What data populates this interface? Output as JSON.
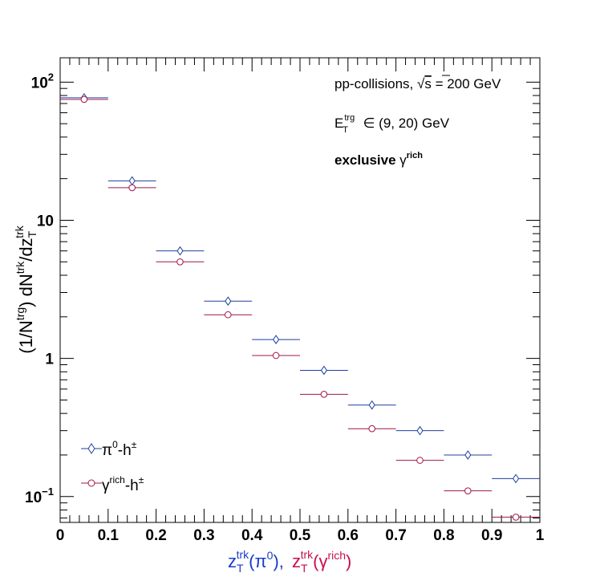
{
  "chart_data": {
    "type": "scatter",
    "x_range": [
      0,
      1
    ],
    "y_range": [
      0.065,
      150
    ],
    "y_scale": "log",
    "grid": false,
    "legend_position": "bottom-left",
    "x_ticks": [
      "0",
      "0.1",
      "0.2",
      "0.3",
      "0.4",
      "0.5",
      "0.6",
      "0.7",
      "0.8",
      "0.9",
      "1"
    ],
    "y_ticks": [
      {
        "value": 100,
        "base": "10",
        "exp": "2"
      },
      {
        "value": 10,
        "label": "10"
      },
      {
        "value": 1,
        "label": "1"
      },
      {
        "value": 0.1,
        "base": "10",
        "exp": "−1"
      }
    ],
    "ylabel": {
      "prefix": "(1/N",
      "sup1": "trg",
      "mid": ") dN",
      "sup2": "trk",
      "tail": "/dz",
      "sub3": "T",
      "sup3": "trk"
    },
    "xlabel": {
      "part1": {
        "base": "z",
        "sub": "T",
        "sup": "trk",
        "open": "(π",
        "sup2": "0",
        "close": "),"
      },
      "part2": {
        "base": "z",
        "sub": "T",
        "sup": "trk",
        "open": "(γ",
        "sup2": "rich",
        "close": ")"
      }
    },
    "annotations": {
      "line1_a": "pp-collisions, ",
      "line1_sqrt": "√",
      "line1_s": "s",
      "line1_b": " = 200 GeV",
      "line2_base": "E",
      "line2_sup": "trg",
      "line2_sub": "T",
      "line2_rest": " ∈ (9, 20) GeV",
      "line3_bold": "exclusive ",
      "line3_gamma": "γ",
      "line3_sup": "rich"
    },
    "series": [
      {
        "name": {
          "base": "π",
          "sup": "0",
          "mid": "-h",
          "sup2": "±"
        },
        "color": "#1f3fa0",
        "marker": "diamond",
        "x": [
          0.05,
          0.15,
          0.25,
          0.35,
          0.45,
          0.55,
          0.65,
          0.75,
          0.85,
          0.95
        ],
        "y": [
          77,
          19.3,
          6.0,
          2.6,
          1.37,
          0.82,
          0.46,
          0.3,
          0.2,
          0.135
        ],
        "xerr": 0.05
      },
      {
        "name": {
          "base": "γ",
          "sup": "rich",
          "mid": "-h",
          "sup2": "±"
        },
        "color": "#a0144a",
        "marker": "circle",
        "x": [
          0.05,
          0.15,
          0.25,
          0.35,
          0.45,
          0.55,
          0.65,
          0.75,
          0.85,
          0.95
        ],
        "y": [
          75,
          17.2,
          5.0,
          2.07,
          1.05,
          0.55,
          0.31,
          0.183,
          0.11,
          0.071
        ],
        "xerr": 0.05
      }
    ]
  }
}
